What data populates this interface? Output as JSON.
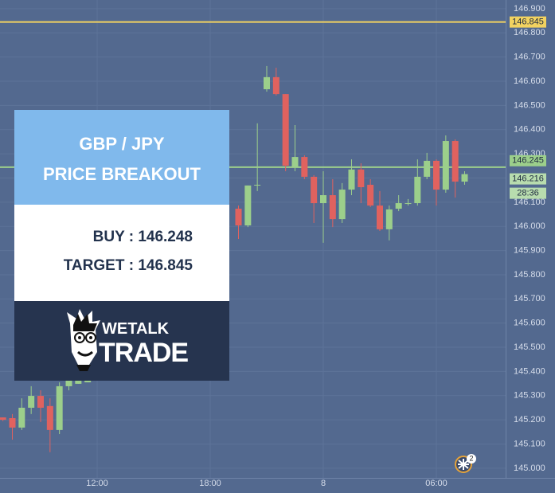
{
  "chart_data": {
    "type": "candlestick",
    "x": [
      7,
      7.5,
      8,
      8.5,
      9,
      9.5,
      10,
      10.5,
      11,
      11.5,
      19.5,
      20,
      20.5,
      21,
      21.5,
      22,
      22.5,
      23,
      23.5,
      24,
      24.5,
      25,
      25.5,
      26,
      26.5,
      27,
      27.5,
      28,
      28.5,
      29,
      29.5,
      30,
      30.5,
      31,
      31.5
    ],
    "open": [
      145.21,
      145.207,
      145.168,
      145.25,
      145.299,
      145.257,
      145.158,
      145.339,
      145.349,
      145.355,
      146.073,
      146.004,
      146.169,
      146.567,
      146.617,
      146.547,
      146.244,
      146.287,
      146.205,
      146.096,
      146.129,
      146.03,
      146.152,
      146.235,
      146.172,
      146.086,
      145.988,
      146.073,
      146.096,
      146.096,
      146.205,
      146.271,
      146.152,
      146.353,
      146.185
    ],
    "high": [
      145.21,
      145.224,
      145.289,
      145.339,
      145.322,
      145.289,
      145.355,
      145.362,
      145.362,
      145.362,
      146.086,
      146.169,
      146.426,
      146.663,
      146.656,
      146.547,
      146.419,
      146.294,
      146.212,
      146.228,
      146.195,
      146.179,
      146.277,
      146.261,
      146.195,
      146.146,
      146.086,
      146.129,
      146.113,
      146.277,
      146.304,
      146.277,
      146.376,
      146.36,
      146.228
    ],
    "low": [
      145.195,
      145.118,
      145.158,
      145.224,
      145.191,
      145.066,
      145.141,
      145.322,
      145.349,
      145.355,
      145.948,
      145.997,
      146.146,
      146.557,
      146.541,
      146.228,
      146.228,
      146.195,
      146.014,
      145.932,
      145.997,
      146.014,
      146.129,
      146.096,
      146.08,
      145.981,
      145.942,
      146.063,
      146.086,
      146.086,
      146.195,
      146.086,
      146.139,
      146.119,
      146.172
    ],
    "close": [
      145.2,
      145.168,
      145.25,
      145.299,
      145.25,
      145.158,
      145.339,
      145.362,
      145.362,
      145.362,
      146.004,
      146.169,
      146.172,
      146.617,
      146.547,
      146.251,
      146.287,
      146.205,
      146.096,
      146.129,
      146.03,
      146.152,
      146.235,
      146.162,
      146.086,
      145.988,
      146.07,
      146.096,
      146.096,
      146.205,
      146.271,
      146.152,
      146.353,
      146.185,
      146.216
    ],
    "up_color": "#9ccf8b",
    "down_color": "#e0625f",
    "xlim": [
      6.845,
      33.676
    ],
    "xticks": [
      {
        "value": 12,
        "label": "12:00"
      },
      {
        "value": 18,
        "label": "18:00"
      },
      {
        "value": 24,
        "label": "8"
      },
      {
        "value": 30,
        "label": "06:00"
      }
    ],
    "ylim": [
      144.96,
      146.936
    ],
    "yticks": [
      {
        "value": 145.0,
        "label": "145.000"
      },
      {
        "value": 145.1,
        "label": "145.100"
      },
      {
        "value": 145.2,
        "label": "145.200"
      },
      {
        "value": 145.3,
        "label": "145.300"
      },
      {
        "value": 145.4,
        "label": "145.400"
      },
      {
        "value": 145.5,
        "label": "145.500"
      },
      {
        "value": 145.6,
        "label": "145.600"
      },
      {
        "value": 145.7,
        "label": "145.700"
      },
      {
        "value": 145.8,
        "label": "145.800"
      },
      {
        "value": 145.9,
        "label": "145.900"
      },
      {
        "value": 146.0,
        "label": "146.000"
      },
      {
        "value": 146.1,
        "label": "146.100"
      },
      {
        "value": 146.2,
        "label": "146.200"
      },
      {
        "value": 146.3,
        "label": "146.300"
      },
      {
        "value": 146.4,
        "label": "146.400"
      },
      {
        "value": 146.5,
        "label": "146.500"
      },
      {
        "value": 146.6,
        "label": "146.600"
      },
      {
        "value": 146.7,
        "label": "146.700"
      },
      {
        "value": 146.8,
        "label": "146.800"
      },
      {
        "value": 146.9,
        "label": "146.900"
      }
    ],
    "grid": true,
    "price_lines": [
      {
        "value": 146.845,
        "color": "#f2d260"
      },
      {
        "value": 146.245,
        "color": "#9ccf8b"
      }
    ],
    "current_price": 146.216,
    "countdown": "28:36",
    "events_badge": "2"
  },
  "panel": {
    "pair": "GBP / JPY",
    "headline": "PRICE BREAKOUT",
    "buy": "BUY : 146.248",
    "target": "TARGET : 146.845",
    "logo_top": "WETALK",
    "logo_bottom": "TRADE"
  }
}
